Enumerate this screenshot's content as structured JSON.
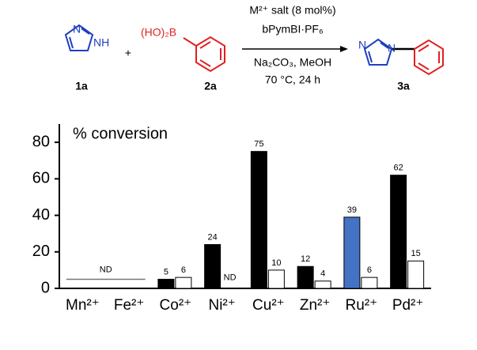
{
  "scheme": {
    "reactant1_n": "N",
    "reactant1_nh": "NH",
    "reactant1_label": "1a",
    "plus": "+",
    "reactant2_group": "(HO)₂B",
    "reactant2_label": "2a",
    "condition1": "M²⁺ salt (8 mol%)",
    "condition2": "bPymBI·PF₆",
    "condition3": "Na₂CO₃, MeOH",
    "condition4": "70 °C, 24 h",
    "product_n1": "N",
    "product_n2": "N",
    "product_label": "3a"
  },
  "chart_data": {
    "type": "bar",
    "ylabel": "% conversion",
    "categories": [
      "Mn²⁺",
      "Fe²⁺",
      "Co²⁺",
      "Ni²⁺",
      "Cu²⁺",
      "Zn²⁺",
      "Ru²⁺",
      "Pd²⁺"
    ],
    "series": [
      {
        "color": "#000000",
        "colors": [
          "#000000",
          "#000000",
          "#000000",
          "#000000",
          "#000000",
          "#000000",
          "#4472c4",
          "#000000"
        ],
        "values": [
          null,
          null,
          5,
          24,
          75,
          12,
          39,
          62
        ]
      },
      {
        "color": "#ffffff",
        "values": [
          null,
          null,
          6,
          null,
          10,
          4,
          6,
          15
        ],
        "value_labels": [
          null,
          null,
          null,
          "ND",
          null,
          null,
          null,
          null
        ]
      }
    ],
    "annotation": "ND",
    "ylim": [
      0,
      90
    ],
    "yticks": [
      0,
      20,
      40,
      60,
      80
    ]
  }
}
